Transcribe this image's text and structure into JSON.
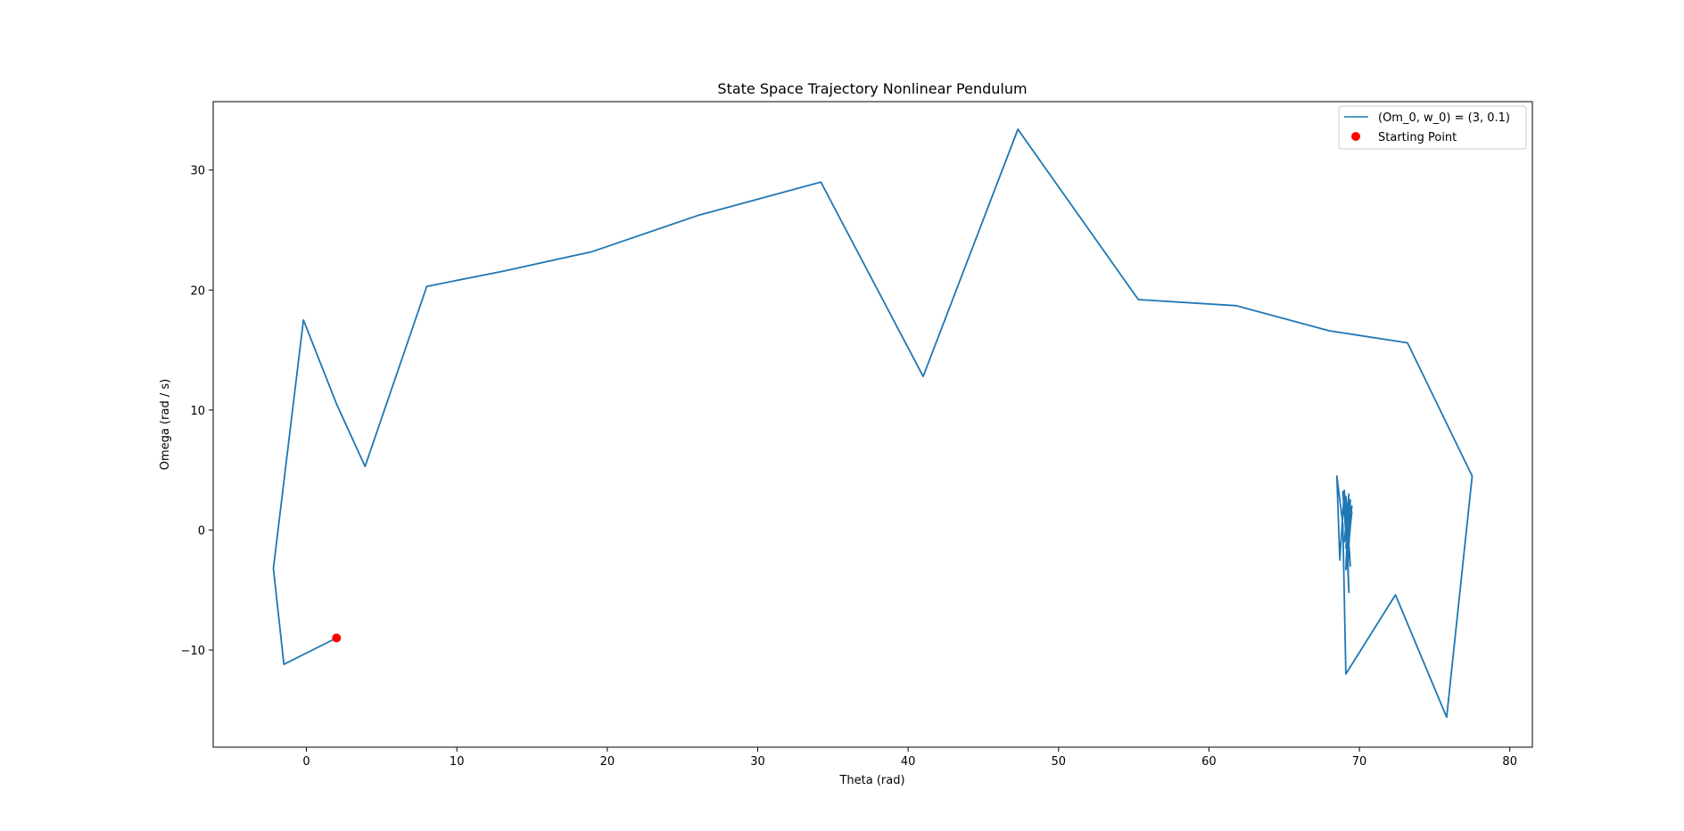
{
  "chart_data": {
    "type": "line",
    "title": "State Space Trajectory Nonlinear Pendulum",
    "xlabel": "Theta (rad)",
    "ylabel": "Omega (rad / s)",
    "xlim": [
      -6.2,
      81.5
    ],
    "ylim": [
      -18.1,
      35.7
    ],
    "xticks": [
      0,
      10,
      20,
      30,
      40,
      50,
      60,
      70,
      80
    ],
    "yticks": [
      -10,
      0,
      10,
      20,
      30
    ],
    "grid": false,
    "legend_position": "top-right",
    "colors": {
      "line": "#1f77b4",
      "marker": "#ff0000",
      "axes": "#000000",
      "legend_border": "#cccccc"
    },
    "series": [
      {
        "name": "(Om_0, w_0) = (3, 0.1)",
        "type": "line",
        "x": [
          2.0,
          -1.5,
          -2.2,
          -0.2,
          2.0,
          3.9,
          8.0,
          13.2,
          19.0,
          26.0,
          34.2,
          41.0,
          47.3,
          55.3,
          61.8,
          68.0,
          73.2,
          77.5,
          75.8,
          72.4,
          69.1,
          68.9,
          68.5,
          68.7,
          69.0,
          69.3,
          69.1,
          69.4,
          68.9,
          69.2,
          69.5,
          69.1,
          69.3,
          69.0,
          69.4,
          69.2,
          69.5,
          69.1,
          69.3
        ],
        "y": [
          -9.0,
          -11.2,
          -3.2,
          17.5,
          10.5,
          5.3,
          20.3,
          21.6,
          23.2,
          26.2,
          29.0,
          12.8,
          33.4,
          19.2,
          18.7,
          16.6,
          15.6,
          4.5,
          -15.6,
          -5.4,
          -12.0,
          0.5,
          4.5,
          -2.5,
          3.3,
          -5.2,
          2.8,
          -3.0,
          3.2,
          -2.0,
          1.5,
          -3.3,
          3.0,
          -1.0,
          2.5,
          -2.8,
          2.0,
          -1.5,
          1.2
        ]
      },
      {
        "name": "Starting Point",
        "type": "scatter",
        "x": [
          2.0
        ],
        "y": [
          -9.0
        ]
      }
    ]
  }
}
